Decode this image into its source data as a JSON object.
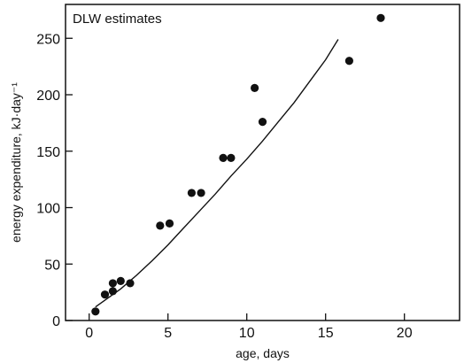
{
  "chart_data": {
    "type": "scatter",
    "title": "",
    "annotation": "DLW estimates",
    "xlabel": "age, days",
    "ylabel": "energy expenditure, kJ·day⁻¹",
    "xlim": [
      -1.5,
      23.5
    ],
    "ylim": [
      0,
      280
    ],
    "x_ticks": [
      0,
      5,
      10,
      15,
      20
    ],
    "y_ticks": [
      0,
      50,
      100,
      150,
      200,
      250
    ],
    "grid": false,
    "points": [
      {
        "x": 0.4,
        "y": 8
      },
      {
        "x": 1.0,
        "y": 23
      },
      {
        "x": 1.5,
        "y": 26
      },
      {
        "x": 1.5,
        "y": 33
      },
      {
        "x": 2.0,
        "y": 35
      },
      {
        "x": 2.6,
        "y": 33
      },
      {
        "x": 4.5,
        "y": 84
      },
      {
        "x": 5.1,
        "y": 86
      },
      {
        "x": 6.5,
        "y": 113
      },
      {
        "x": 7.1,
        "y": 113
      },
      {
        "x": 8.5,
        "y": 144
      },
      {
        "x": 9.0,
        "y": 144
      },
      {
        "x": 10.5,
        "y": 206
      },
      {
        "x": 11.0,
        "y": 176
      },
      {
        "x": 16.5,
        "y": 230
      },
      {
        "x": 18.5,
        "y": 268
      }
    ],
    "fit_line": {
      "x": [
        0.4,
        1,
        2,
        3,
        4,
        5,
        6,
        7,
        8,
        9,
        10,
        11,
        12,
        13,
        14,
        15,
        15.8
      ],
      "y": [
        12,
        18,
        28,
        40,
        53,
        67,
        82,
        97,
        112,
        128,
        143,
        159,
        176,
        193,
        212,
        231,
        249
      ]
    }
  }
}
